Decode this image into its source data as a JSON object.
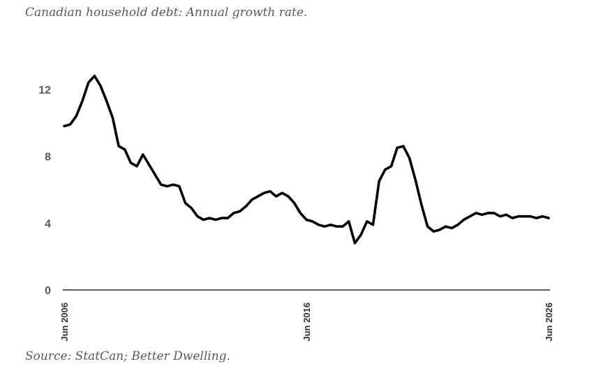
{
  "title": "Canadian household debt: Annual growth rate.",
  "source": "Source: StatCan; Better Dwelling.",
  "colors": {
    "line": "#000000",
    "axis": "#000000",
    "text": "#595959"
  },
  "chart_data": {
    "type": "line",
    "title": "Canadian household debt: Annual growth rate.",
    "xlabel": "",
    "ylabel": "",
    "ylim": [
      0,
      14
    ],
    "xlim": [
      "2006-06",
      "2026-06"
    ],
    "yticks": [
      "0",
      "4",
      "8",
      "12"
    ],
    "xticks": [
      "Jun 2006",
      "Jun 2016",
      "Jun 2026"
    ],
    "grid": false,
    "series": [
      {
        "x": [
          "2006-06",
          "2006-09",
          "2006-12",
          "2007-03",
          "2007-06",
          "2007-09",
          "2007-12",
          "2008-03",
          "2008-06",
          "2008-09",
          "2008-12",
          "2009-03",
          "2009-06",
          "2009-09",
          "2009-12",
          "2010-03",
          "2010-06",
          "2010-09",
          "2010-12",
          "2011-03",
          "2011-06",
          "2011-09",
          "2011-12",
          "2012-03",
          "2012-06",
          "2012-09",
          "2012-12",
          "2013-03",
          "2013-06",
          "2013-09",
          "2013-12",
          "2014-03",
          "2014-06",
          "2014-09",
          "2014-12",
          "2015-03",
          "2015-06",
          "2015-09",
          "2015-12",
          "2016-03",
          "2016-06",
          "2016-09",
          "2016-12",
          "2017-03",
          "2017-06",
          "2017-09",
          "2017-12",
          "2018-03",
          "2018-06",
          "2018-09",
          "2018-12",
          "2019-03",
          "2019-06",
          "2019-09",
          "2019-12",
          "2020-03",
          "2020-06",
          "2020-09",
          "2020-12",
          "2021-03",
          "2021-06",
          "2021-09",
          "2021-12",
          "2022-03",
          "2022-06",
          "2022-09",
          "2022-12",
          "2023-03",
          "2023-06",
          "2023-09",
          "2023-12",
          "2024-03",
          "2024-06",
          "2024-09",
          "2024-12",
          "2025-03",
          "2025-06",
          "2025-09",
          "2025-12",
          "2026-03",
          "2026-06"
        ],
        "values": [
          9.8,
          9.9,
          10.4,
          11.3,
          12.4,
          12.8,
          12.2,
          11.3,
          10.3,
          8.6,
          8.4,
          7.6,
          7.4,
          8.1,
          7.5,
          6.9,
          6.3,
          6.2,
          6.3,
          6.2,
          5.2,
          4.9,
          4.4,
          4.2,
          4.3,
          4.2,
          4.3,
          4.3,
          4.6,
          4.7,
          5.0,
          5.4,
          5.6,
          5.8,
          5.9,
          5.6,
          5.8,
          5.6,
          5.2,
          4.6,
          4.2,
          4.1,
          3.9,
          3.8,
          3.9,
          3.8,
          3.8,
          4.1,
          2.8,
          3.3,
          4.1,
          3.9,
          6.5,
          7.2,
          7.4,
          8.5,
          8.6,
          7.9,
          6.6,
          5.1,
          3.8,
          3.5,
          3.6,
          3.8,
          3.7,
          3.9,
          4.2,
          4.4,
          4.6,
          4.5,
          4.6,
          4.6,
          4.4,
          4.5,
          4.3,
          4.4,
          4.4,
          4.4,
          4.3,
          4.4,
          4.3
        ]
      }
    ]
  }
}
